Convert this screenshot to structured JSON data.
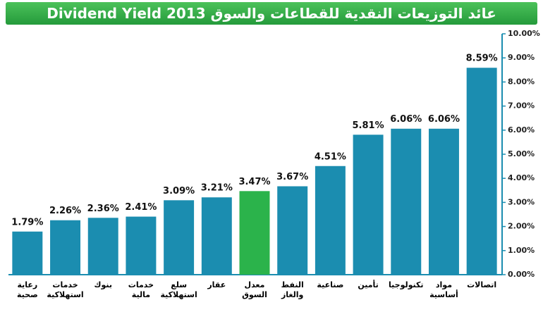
{
  "chart_data": {
    "type": "bar",
    "title": "عائد التوزيعات النقدية للقطاعات والسوق Dividend Yield 2013",
    "categories": [
      "رعاية\nصحية",
      "خدمات\nاستهلاكية",
      "بنوك",
      "خدمات\nمالية",
      "سلع\nاستهلاكية",
      "عقار",
      "معدل\nالسوق",
      "النفط\nوالغاز",
      "صناعية",
      "تأمين",
      "تكنولوجيا",
      "مواد\nأساسية",
      "اتصالات"
    ],
    "values": [
      1.79,
      2.26,
      2.36,
      2.41,
      3.09,
      3.21,
      3.47,
      3.67,
      4.51,
      5.81,
      6.06,
      6.06,
      8.59
    ],
    "value_labels": [
      "1.79%",
      "2.26%",
      "2.36%",
      "2.41%",
      "3.09%",
      "3.21%",
      "3.47%",
      "3.67%",
      "4.51%",
      "5.81%",
      "6.06%",
      "6.06%",
      "8.59%"
    ],
    "colors": [
      "#1b8db0",
      "#1b8db0",
      "#1b8db0",
      "#1b8db0",
      "#1b8db0",
      "#1b8db0",
      "#2bb34b",
      "#1b8db0",
      "#1b8db0",
      "#1b8db0",
      "#1b8db0",
      "#1b8db0",
      "#1b8db0"
    ],
    "ylim": [
      0,
      10
    ],
    "yticks": [
      {
        "value": 0,
        "label": "0.00%"
      },
      {
        "value": 1,
        "label": "1.00%"
      },
      {
        "value": 2,
        "label": "2.00%"
      },
      {
        "value": 3,
        "label": "3.00%"
      },
      {
        "value": 4,
        "label": "4.00%"
      },
      {
        "value": 5,
        "label": "5.00%"
      },
      {
        "value": 6,
        "label": "6.00%"
      },
      {
        "value": 7,
        "label": "7.00%"
      },
      {
        "value": 8,
        "label": "8.00%"
      },
      {
        "value": 9,
        "label": "9.00%"
      },
      {
        "value": 10,
        "label": "10.00%"
      }
    ],
    "grid": false
  }
}
